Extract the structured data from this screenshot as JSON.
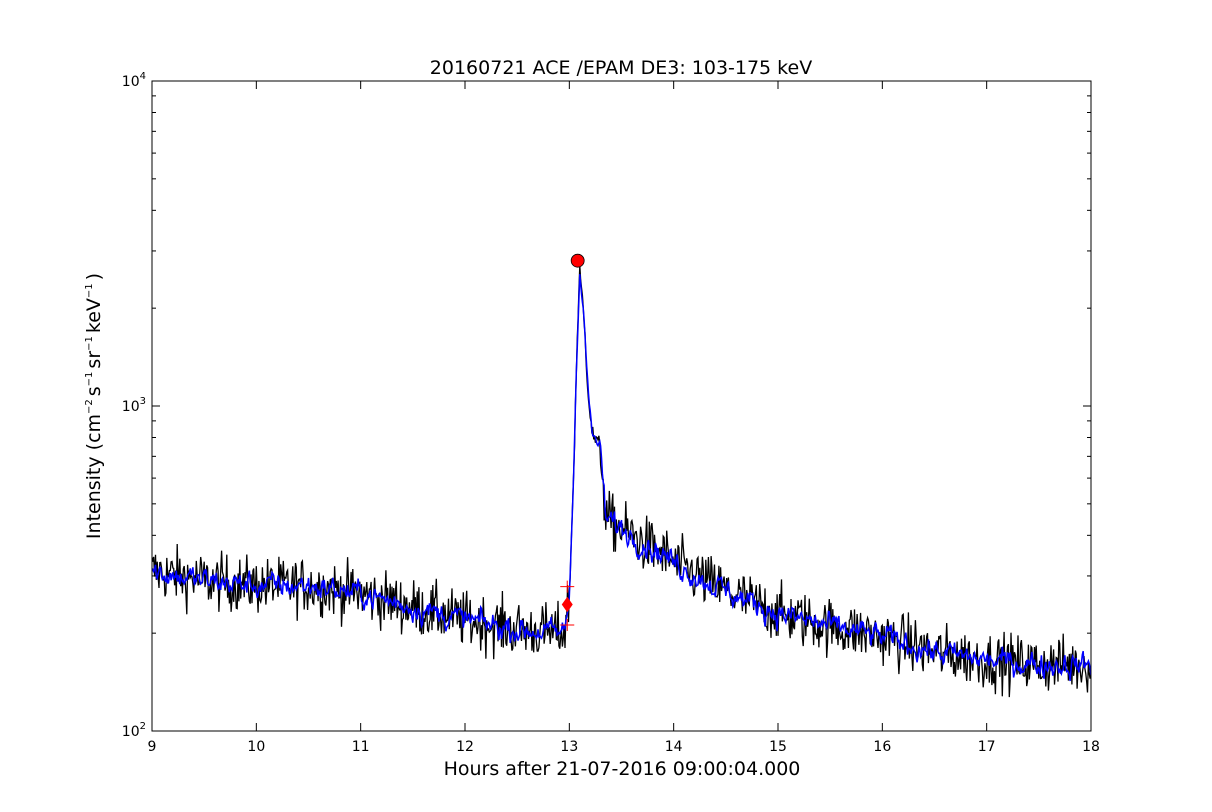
{
  "chart_data": {
    "type": "line",
    "title": "20160721 ACE /EPAM DE3: 103-175 keV",
    "xlabel": "Hours after 21-07-2016 09:00:04.000",
    "ylabel": {
      "prefix": "Intensity (cm",
      "exp1": "−2",
      "mid1": "s",
      "exp2": "−1",
      "mid2": "sr",
      "exp3": "−1",
      "mid3": "keV",
      "exp4": "−1",
      "suffix": ")"
    },
    "xlim": [
      9,
      18
    ],
    "ylim": [
      100,
      10000
    ],
    "yscale": "log",
    "x_ticks": [
      "9",
      "10",
      "11",
      "12",
      "13",
      "14",
      "15",
      "16",
      "17",
      "18"
    ],
    "y_ticks": [
      {
        "value": 100,
        "base": "10",
        "exp": "2"
      },
      {
        "value": 1000,
        "base": "10",
        "exp": "3"
      },
      {
        "value": 10000,
        "base": "10",
        "exp": "4"
      }
    ],
    "grid": false,
    "series": [
      {
        "style": "raw",
        "color": "#000000",
        "description_points": [
          [
            9.0,
            310
          ],
          [
            9.5,
            290
          ],
          [
            10.0,
            280
          ],
          [
            10.5,
            280
          ],
          [
            11.0,
            265
          ],
          [
            11.5,
            240
          ],
          [
            12.0,
            220
          ],
          [
            12.5,
            205
          ],
          [
            12.95,
            200
          ],
          [
            13.0,
            260
          ],
          [
            13.04,
            600
          ],
          [
            13.07,
            1400
          ],
          [
            13.1,
            2600
          ],
          [
            13.14,
            1900
          ],
          [
            13.18,
            1100
          ],
          [
            13.22,
            820
          ],
          [
            13.3,
            740
          ],
          [
            13.35,
            450
          ],
          [
            13.5,
            420
          ],
          [
            13.7,
            380
          ],
          [
            13.9,
            350
          ],
          [
            14.0,
            330
          ],
          [
            14.3,
            290
          ],
          [
            14.6,
            260
          ],
          [
            15.0,
            230
          ],
          [
            15.5,
            210
          ],
          [
            16.0,
            195
          ],
          [
            16.5,
            175
          ],
          [
            17.0,
            165
          ],
          [
            17.5,
            160
          ],
          [
            18.0,
            160
          ]
        ]
      },
      {
        "style": "smoothed",
        "color": "#0000ff",
        "description_points": [
          [
            9.0,
            310
          ],
          [
            9.5,
            290
          ],
          [
            10.0,
            280
          ],
          [
            10.5,
            280
          ],
          [
            11.0,
            265
          ],
          [
            11.5,
            240
          ],
          [
            12.0,
            220
          ],
          [
            12.5,
            205
          ],
          [
            12.95,
            200
          ],
          [
            13.0,
            260
          ],
          [
            13.04,
            600
          ],
          [
            13.07,
            1400
          ],
          [
            13.1,
            2600
          ],
          [
            13.14,
            1900
          ],
          [
            13.18,
            1100
          ],
          [
            13.22,
            820
          ],
          [
            13.3,
            740
          ],
          [
            13.35,
            450
          ],
          [
            13.5,
            420
          ],
          [
            13.7,
            380
          ],
          [
            13.9,
            350
          ],
          [
            14.0,
            330
          ],
          [
            14.3,
            290
          ],
          [
            14.6,
            260
          ],
          [
            15.0,
            230
          ],
          [
            15.5,
            210
          ],
          [
            16.0,
            195
          ],
          [
            16.5,
            175
          ],
          [
            17.0,
            165
          ],
          [
            17.5,
            160
          ],
          [
            18.0,
            160
          ]
        ]
      }
    ],
    "markers": [
      {
        "kind": "peak",
        "shape": "circle",
        "color": "#ff0000",
        "x": 13.08,
        "y": 2800
      },
      {
        "kind": "onset",
        "shape": "diamond",
        "color": "#ff0000",
        "x": 12.98,
        "y": 245
      },
      {
        "kind": "onset-upper",
        "shape": "plus",
        "color": "#ff0000",
        "x": 12.98,
        "y": 278
      },
      {
        "kind": "onset-lower",
        "shape": "plus",
        "color": "#ff0000",
        "x": 12.98,
        "y": 212
      }
    ]
  }
}
